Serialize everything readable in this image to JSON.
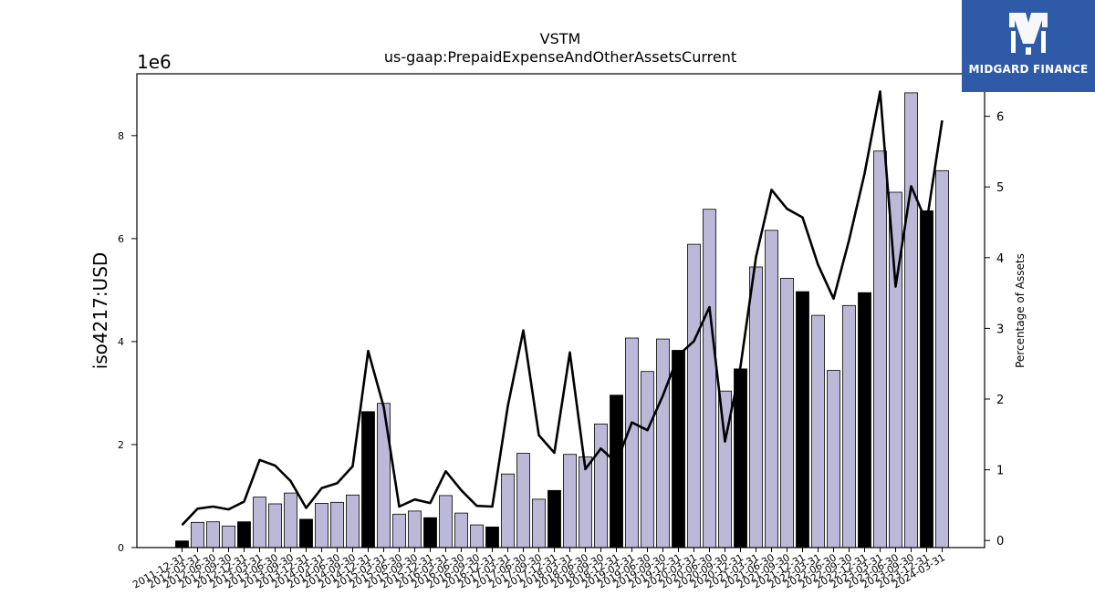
{
  "chart_data": {
    "type": "bar",
    "title": "VSTM",
    "subtitle": "us-gaap:PrepaidExpenseAndOtherAssetsCurrent",
    "ylabel": "iso4217:USD",
    "y_multiplier_label": "1e6",
    "y2label": "Percentage of Assets",
    "ylim": [
      0,
      9200000
    ],
    "y2lim": [
      -0.1,
      6.6
    ],
    "yticks": [
      0,
      2,
      4,
      6,
      8
    ],
    "y2ticks": [
      0,
      1,
      2,
      3,
      4,
      5,
      6
    ],
    "categories": [
      "2011-12-31",
      "2012-03-31",
      "2012-06-30",
      "2012-09-30",
      "2012-12-31",
      "2013-03-31",
      "2013-06-30",
      "2013-09-30",
      "2013-12-31",
      "2014-03-31",
      "2014-06-30",
      "2014-09-30",
      "2014-12-31",
      "2015-03-31",
      "2015-06-30",
      "2015-09-30",
      "2015-12-31",
      "2016-03-31",
      "2016-06-30",
      "2016-09-30",
      "2016-12-31",
      "2017-03-31",
      "2017-06-30",
      "2017-09-30",
      "2017-12-31",
      "2018-03-31",
      "2018-06-30",
      "2018-09-30",
      "2018-12-31",
      "2019-03-31",
      "2019-06-30",
      "2019-09-30",
      "2019-12-31",
      "2020-03-31",
      "2020-06-30",
      "2020-09-30",
      "2020-12-31",
      "2021-03-31",
      "2021-06-30",
      "2021-09-30",
      "2021-12-31",
      "2022-03-31",
      "2022-06-30",
      "2022-09-30",
      "2022-12-31",
      "2023-03-31",
      "2023-06-30",
      "2023-09-30",
      "2023-12-31",
      "2024-03-31"
    ],
    "values": [
      130000,
      490000,
      500000,
      420000,
      500000,
      980000,
      850000,
      1060000,
      550000,
      860000,
      880000,
      1020000,
      2640000,
      2800000,
      650000,
      710000,
      580000,
      1010000,
      670000,
      440000,
      400000,
      1430000,
      1830000,
      940000,
      1110000,
      1810000,
      1760000,
      2400000,
      2960000,
      4070000,
      3420000,
      4050000,
      3830000,
      5890000,
      6570000,
      3040000,
      3470000,
      5450000,
      6160000,
      5230000,
      4970000,
      4510000,
      3440000,
      4700000,
      4950000,
      7700000,
      6900000,
      8830000,
      6540000,
      7320000
    ],
    "highlight": [
      true,
      false,
      false,
      false,
      true,
      false,
      false,
      false,
      true,
      false,
      false,
      false,
      true,
      false,
      false,
      false,
      true,
      false,
      false,
      false,
      true,
      false,
      false,
      false,
      true,
      false,
      false,
      false,
      true,
      false,
      false,
      false,
      true,
      false,
      false,
      false,
      true,
      false,
      false,
      false,
      true,
      false,
      false,
      false,
      true,
      false,
      false,
      false,
      true,
      false
    ],
    "series": [
      {
        "name": "Percentage of Assets",
        "values": [
          0.22,
          0.45,
          0.48,
          0.44,
          0.55,
          1.14,
          1.06,
          0.84,
          0.46,
          0.74,
          0.81,
          1.05,
          2.68,
          1.89,
          0.48,
          0.58,
          0.53,
          0.98,
          0.71,
          0.49,
          0.48,
          1.9,
          2.97,
          1.49,
          1.24,
          2.66,
          1.01,
          1.3,
          1.1,
          1.67,
          1.56,
          2.05,
          2.62,
          2.82,
          3.3,
          1.4,
          2.46,
          4.01,
          4.96,
          4.69,
          4.57,
          3.9,
          3.42,
          4.25,
          5.19,
          6.35,
          3.59,
          5.01,
          4.5,
          5.94
        ]
      }
    ],
    "colors": {
      "bar": "#bcb8d8",
      "bar_highlight": "#000000",
      "line": "#000000",
      "logo_bg": "#2f5aa8"
    },
    "grid": false
  },
  "logo": {
    "text": "MIDGARD FINANCE"
  }
}
